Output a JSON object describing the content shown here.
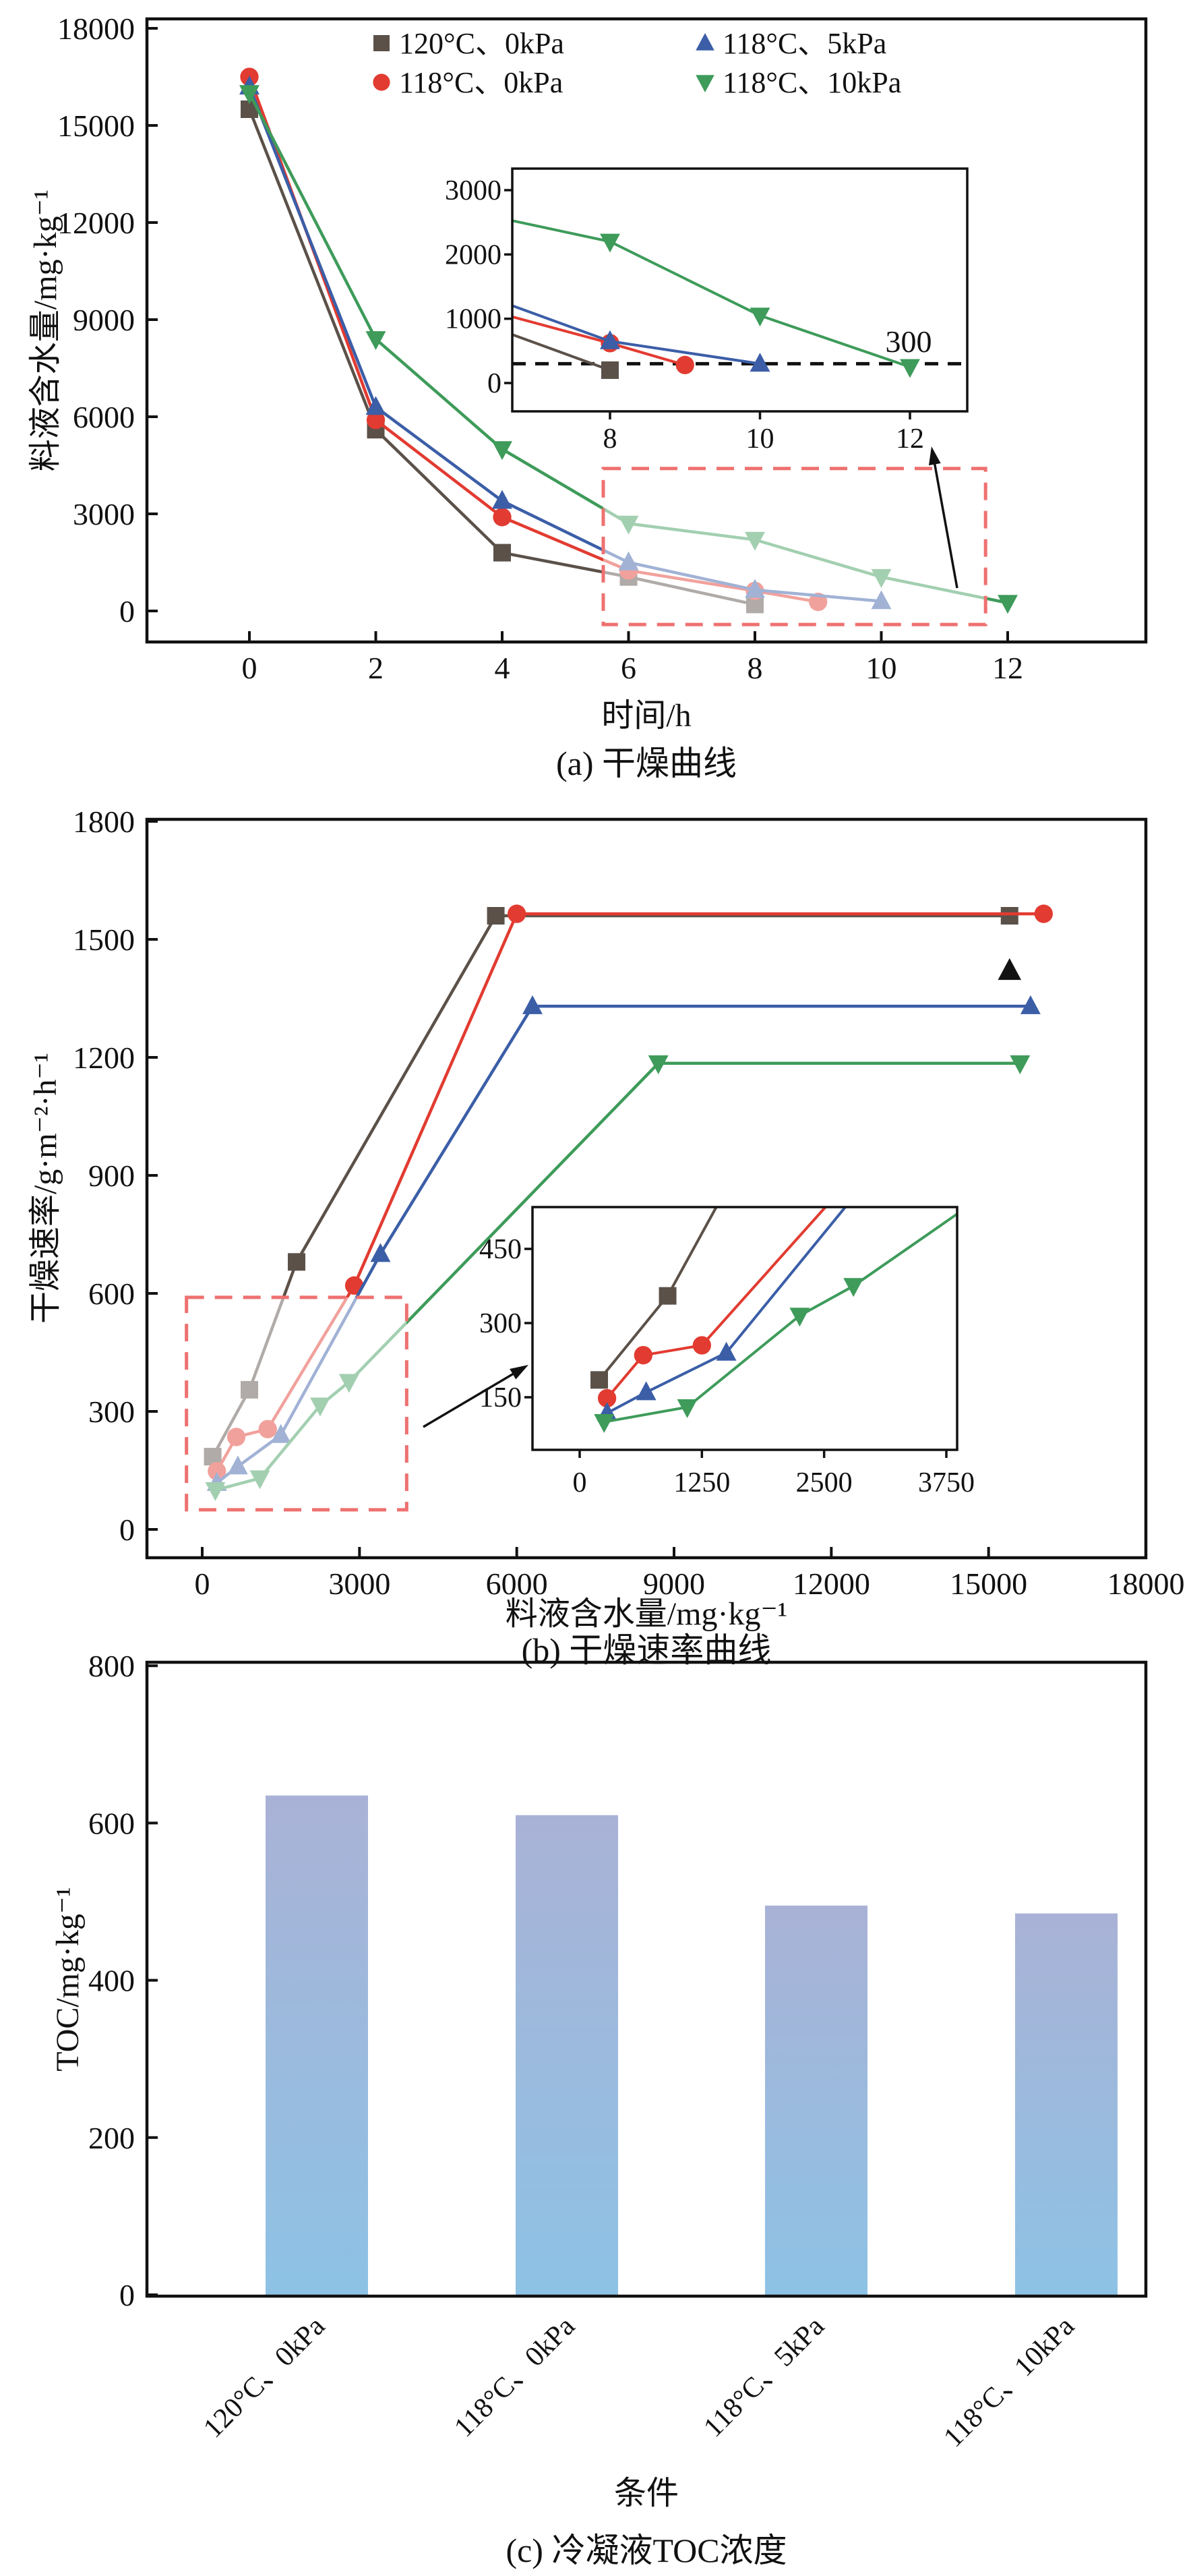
{
  "figure": {
    "background": "#ffffff",
    "accent_colors": {
      "series_gray": "#5b5149",
      "series_red": "#e23b31",
      "series_blue": "#3b5ea7",
      "series_green": "#3e9b5a",
      "highlight_box": "#ee7170",
      "bar_top": "#a9b2d6",
      "bar_bottom": "#8dc2e5"
    }
  },
  "chart_data": [
    {
      "type": "line",
      "panel": "a",
      "title": "(a) 干燥曲线",
      "xlabel": "时间/h",
      "ylabel": "料液含水量/mg·kg⁻¹",
      "xticks": [
        0,
        2,
        4,
        6,
        8,
        10,
        12
      ],
      "yticks": [
        0,
        3000,
        6000,
        9000,
        12000,
        15000,
        18000
      ],
      "xlim": [
        -1.6,
        14.2
      ],
      "ylim": [
        -1050,
        18350
      ],
      "grid": false,
      "legend_position": "top-center-two-columns",
      "legend": [
        {
          "label": "120°C、0kPa",
          "marker": "square",
          "color": "#5b5149"
        },
        {
          "label": "118°C、0kPa",
          "marker": "circle",
          "color": "#e23b31"
        },
        {
          "label": "118°C、5kPa",
          "marker": "triangle-up",
          "color": "#3b5ea7"
        },
        {
          "label": "118°C、10kPa",
          "marker": "triangle-down",
          "color": "#3e9b5a"
        }
      ],
      "series": [
        {
          "name": "120°C、0kPa",
          "marker": "square",
          "color": "#5b5149",
          "x": [
            0,
            2,
            4,
            6,
            8
          ],
          "y": [
            15500,
            5600,
            1800,
            1050,
            200
          ]
        },
        {
          "name": "118°C、0kPa",
          "marker": "circle",
          "color": "#e23b31",
          "x": [
            0,
            2,
            4,
            6,
            8,
            9
          ],
          "y": [
            16500,
            5900,
            2900,
            1250,
            620,
            280
          ]
        },
        {
          "name": "118°C、5kPa",
          "marker": "triangle-up",
          "color": "#3b5ea7",
          "x": [
            0,
            2,
            4,
            6,
            8,
            10
          ],
          "y": [
            16200,
            6300,
            3400,
            1500,
            650,
            300
          ]
        },
        {
          "name": "118°C、10kPa",
          "marker": "triangle-down",
          "color": "#3e9b5a",
          "x": [
            0,
            2,
            4,
            6,
            8,
            10,
            12
          ],
          "y": [
            16000,
            8400,
            5000,
            2700,
            2200,
            1050,
            250
          ]
        }
      ],
      "highlight_box": {
        "x0": 5.6,
        "x1": 11.65,
        "y0": -420,
        "y1": 4400
      },
      "inset": {
        "xticks": [
          8,
          10,
          12
        ],
        "yticks": [
          0,
          1000,
          2000,
          3000
        ],
        "xlim": [
          6.75,
          12.9
        ],
        "ylim": [
          -160,
          3160
        ],
        "ref_line": {
          "y": 300,
          "label": "300"
        }
      }
    },
    {
      "type": "line",
      "panel": "b",
      "title": "(b) 干燥速率曲线",
      "xlabel": "料液含水量/mg·kg⁻¹",
      "ylabel": "干燥速率/g·m⁻²·h⁻¹",
      "xticks": [
        0,
        3000,
        6000,
        9000,
        12000,
        15000,
        18000
      ],
      "yticks": [
        0,
        300,
        600,
        900,
        1200,
        1500,
        1800
      ],
      "xlim": [
        -1050,
        18000
      ],
      "ylim": [
        -70,
        1880
      ],
      "grid": false,
      "series": [
        {
          "name": "120°C、0kPa",
          "marker": "square",
          "color": "#5b5149",
          "x": [
            200,
            900,
            1800,
            5600,
            15400
          ],
          "y": [
            185,
            355,
            680,
            1560,
            1560
          ]
        },
        {
          "name": "118°C、0kPa",
          "marker": "circle",
          "color": "#e23b31",
          "x": [
            280,
            650,
            1250,
            2900,
            6000,
            16050
          ],
          "y": [
            148,
            235,
            255,
            620,
            1565,
            1565
          ]
        },
        {
          "name": "118°C、5kPa",
          "marker": "triangle-up",
          "color": "#3b5ea7",
          "x": [
            280,
            680,
            1500,
            3400,
            6300,
            15800
          ],
          "y": [
            118,
            160,
            240,
            700,
            1330,
            1330
          ]
        },
        {
          "name": "118°C、10kPa",
          "marker": "triangle-down",
          "color": "#3e9b5a",
          "x": [
            250,
            1100,
            2250,
            2800,
            8700,
            15600
          ],
          "y": [
            100,
            130,
            315,
            375,
            1185,
            1185
          ]
        }
      ],
      "annotation_marker": {
        "x": 15400,
        "y": 1420,
        "marker": "triangle-up",
        "color": "#121212"
      },
      "highlight_box": {
        "x0": -300,
        "x1": 3900,
        "y0": 50,
        "y1": 590
      },
      "inset": {
        "xticks": [
          0,
          1250,
          2500,
          3750
        ],
        "yticks": [
          150,
          300,
          450
        ],
        "xlim": [
          -480,
          3860
        ],
        "ylim": [
          45,
          535
        ]
      }
    },
    {
      "type": "bar",
      "panel": "c",
      "title": "(c) 冷凝液TOC浓度",
      "xlabel": "条件",
      "ylabel": "TOC/mg·kg⁻¹",
      "categories": [
        "120°C、0kPa",
        "118°C、0kPa",
        "118°C、5kPa",
        "118°C、10kPa"
      ],
      "values": [
        635,
        610,
        495,
        485
      ],
      "yticks": [
        0,
        200,
        400,
        600,
        800
      ],
      "ylim": [
        0,
        800
      ],
      "grid": false,
      "bar_gradient_top": "#a9b2d6",
      "bar_gradient_bottom": "#8dc2e5"
    }
  ]
}
